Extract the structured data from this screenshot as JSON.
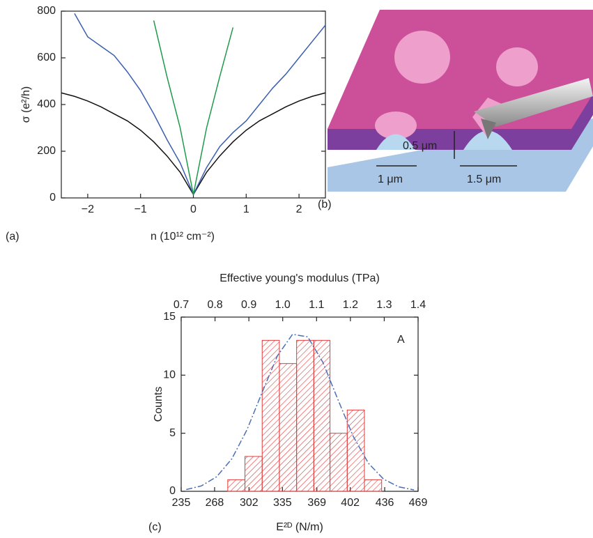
{
  "chart_data": [
    {
      "type": "line",
      "panel_label": "(a)",
      "xlabel": "n (10¹² cm⁻²)",
      "ylabel": "σ (e²/h)",
      "x": [
        -2.5,
        -2.25,
        -2,
        -1.75,
        -1.5,
        -1.25,
        -1,
        -0.75,
        -0.5,
        -0.25,
        0,
        0.25,
        0.5,
        0.75,
        1,
        1.25,
        1.5,
        1.75,
        2,
        2.25,
        2.5
      ],
      "xlim": [
        -2.5,
        2.5
      ],
      "xticks": [
        {
          "value": -2,
          "label": "−2"
        },
        {
          "value": -1,
          "label": "−1"
        },
        0,
        1,
        2
      ],
      "ylim": [
        0,
        800
      ],
      "yticks": [
        0,
        200,
        400,
        600,
        800
      ],
      "series": [
        {
          "color": "#111111",
          "values": [
            450,
            435,
            415,
            390,
            360,
            330,
            290,
            240,
            180,
            110,
            15,
            110,
            180,
            240,
            290,
            330,
            360,
            390,
            415,
            435,
            450
          ]
        },
        {
          "color": "#3a5fb0",
          "values": [
            null,
            790,
            690,
            650,
            610,
            540,
            460,
            360,
            250,
            150,
            15,
            130,
            220,
            280,
            330,
            400,
            470,
            530,
            600,
            670,
            740
          ]
        },
        {
          "color": "#1e9a4a",
          "values": [
            null,
            null,
            null,
            null,
            null,
            null,
            null,
            760,
            520,
            300,
            15,
            300,
            520,
            730,
            null,
            null,
            null,
            null,
            null,
            null,
            null
          ]
        }
      ]
    },
    {
      "type": "histogram",
      "panel_label": "(c)",
      "title": "Effective young's modulus (TPa)",
      "annotation": "A",
      "xlabel": "E²ᴰ (N/m)",
      "ylabel": "Counts",
      "bins": [
        281,
        298,
        315,
        332,
        349,
        366,
        382,
        399,
        416,
        433
      ],
      "counts": [
        1,
        3,
        13,
        11,
        13,
        13,
        5,
        7,
        1
      ],
      "color": "#e03a3a",
      "xlim": [
        235,
        469
      ],
      "xticks": [
        235,
        268,
        302,
        335,
        369,
        402,
        436,
        469
      ],
      "ylim": [
        0,
        15
      ],
      "yticks": [
        0,
        5,
        10,
        15
      ],
      "x2lim": [
        0.7,
        1.4
      ],
      "x2ticks": [
        0.7,
        0.8,
        0.9,
        {
          "value": 1,
          "label": "1.0"
        },
        1.1,
        1.2,
        1.3,
        1.4
      ],
      "fit": {
        "color": "#4a6fb5",
        "x": [
          240,
          255,
          270,
          285,
          300,
          315,
          330,
          345,
          360,
          375,
          390,
          405,
          420,
          435,
          450,
          465
        ],
        "values": [
          0.15,
          0.47,
          1.25,
          2.79,
          5.3,
          8.53,
          11.66,
          13.52,
          13.3,
          11.1,
          7.86,
          4.72,
          2.41,
          1.04,
          0.38,
          0.12
        ]
      }
    }
  ],
  "diagram": {
    "panel_label": "(b)",
    "dimensions": [
      "0.5 μm",
      "1 μm",
      "1.5 μm"
    ]
  }
}
